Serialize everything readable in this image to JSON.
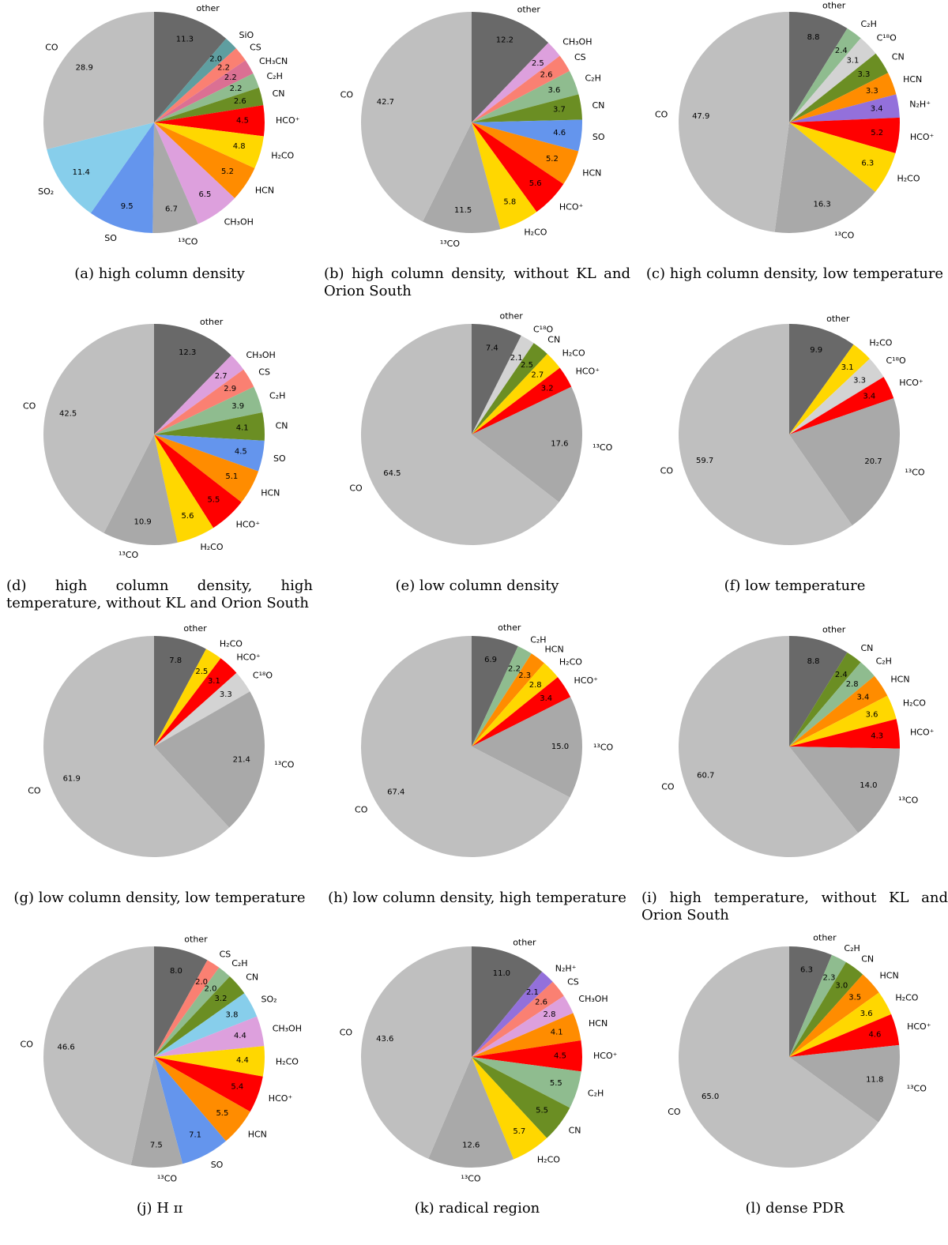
{
  "colors": {
    "other": "#696969",
    "CO": "#bfbfbf",
    "13CO": "#a9a9a9",
    "C18O": "#d3d3d3",
    "SiO": "#5f9ea0",
    "CS": "#fa8072",
    "CH3CN": "#db7093",
    "C2H": "#8fbc8f",
    "CN": "#6b8e23",
    "HCO+": "#ff0000",
    "H2CO": "#ffd700",
    "HCN": "#ff8c00",
    "CH3OH": "#dda0dd",
    "SO": "#6495ed",
    "SO2": "#87ceeb",
    "N2H+": "#9370db"
  },
  "chart_data": [
    {
      "id": "a",
      "type": "pie",
      "title": "(a) high column density",
      "slices": [
        {
          "name": "other",
          "label": "other",
          "value": 11.3
        },
        {
          "name": "SiO",
          "label": "SiO",
          "value": 2.0
        },
        {
          "name": "CS",
          "label": "CS",
          "value": 2.2
        },
        {
          "name": "CH3CN",
          "label": "CH₃CN",
          "value": 2.2
        },
        {
          "name": "C2H",
          "label": "C₂H",
          "value": 2.2
        },
        {
          "name": "CN",
          "label": "CN",
          "value": 2.6
        },
        {
          "name": "HCO+",
          "label": "HCO⁺",
          "value": 4.5
        },
        {
          "name": "H2CO",
          "label": "H₂CO",
          "value": 4.8
        },
        {
          "name": "HCN",
          "label": "HCN",
          "value": 5.2
        },
        {
          "name": "CH3OH",
          "label": "CH₃OH",
          "value": 6.5
        },
        {
          "name": "13CO",
          "label": "¹³CO",
          "value": 6.7
        },
        {
          "name": "SO",
          "label": "SO",
          "value": 9.5
        },
        {
          "name": "SO2",
          "label": "SO₂",
          "value": 11.4
        },
        {
          "name": "CO",
          "label": "CO",
          "value": 28.9
        }
      ]
    },
    {
      "id": "b",
      "type": "pie",
      "title": "(b) high column density, without KL and Orion South",
      "slices": [
        {
          "name": "other",
          "label": "other",
          "value": 12.2
        },
        {
          "name": "CH3OH",
          "label": "CH₃OH",
          "value": 2.5
        },
        {
          "name": "CS",
          "label": "CS",
          "value": 2.6
        },
        {
          "name": "C2H",
          "label": "C₂H",
          "value": 3.6
        },
        {
          "name": "CN",
          "label": "CN",
          "value": 3.7
        },
        {
          "name": "SO",
          "label": "SO",
          "value": 4.6
        },
        {
          "name": "HCN",
          "label": "HCN",
          "value": 5.2
        },
        {
          "name": "HCO+",
          "label": "HCO⁺",
          "value": 5.6
        },
        {
          "name": "H2CO",
          "label": "H₂CO",
          "value": 5.8
        },
        {
          "name": "13CO",
          "label": "¹³CO",
          "value": 11.5
        },
        {
          "name": "CO",
          "label": "CO",
          "value": 42.7
        }
      ]
    },
    {
      "id": "c",
      "type": "pie",
      "title": "(c) high column density, low temperature",
      "slices": [
        {
          "name": "other",
          "label": "other",
          "value": 8.8
        },
        {
          "name": "C2H",
          "label": "C₂H",
          "value": 2.4
        },
        {
          "name": "C18O",
          "label": "C¹⁸O",
          "value": 3.1
        },
        {
          "name": "CN",
          "label": "CN",
          "value": 3.3
        },
        {
          "name": "HCN",
          "label": "HCN",
          "value": 3.3
        },
        {
          "name": "N2H+",
          "label": "N₂H⁺",
          "value": 3.4
        },
        {
          "name": "HCO+",
          "label": "HCO⁺",
          "value": 5.2
        },
        {
          "name": "H2CO",
          "label": "H₂CO",
          "value": 6.3
        },
        {
          "name": "13CO",
          "label": "¹³CO",
          "value": 16.3
        },
        {
          "name": "CO",
          "label": "CO",
          "value": 47.9
        }
      ]
    },
    {
      "id": "d",
      "type": "pie",
      "title": "(d) high column density, high temperature, without KL and Orion South",
      "slices": [
        {
          "name": "other",
          "label": "other",
          "value": 12.3
        },
        {
          "name": "CH3OH",
          "label": "CH₃OH",
          "value": 2.7
        },
        {
          "name": "CS",
          "label": "CS",
          "value": 2.9
        },
        {
          "name": "C2H",
          "label": "C₂H",
          "value": 3.9
        },
        {
          "name": "CN",
          "label": "CN",
          "value": 4.1
        },
        {
          "name": "SO",
          "label": "SO",
          "value": 4.5
        },
        {
          "name": "HCN",
          "label": "HCN",
          "value": 5.1
        },
        {
          "name": "HCO+",
          "label": "HCO⁺",
          "value": 5.5
        },
        {
          "name": "H2CO",
          "label": "H₂CO",
          "value": 5.6
        },
        {
          "name": "13CO",
          "label": "¹³CO",
          "value": 10.9
        },
        {
          "name": "CO",
          "label": "CO",
          "value": 42.5
        }
      ]
    },
    {
      "id": "e",
      "type": "pie",
      "title": "(e) low column density",
      "slices": [
        {
          "name": "other",
          "label": "other",
          "value": 7.4
        },
        {
          "name": "C18O",
          "label": "C¹⁸O",
          "value": 2.1
        },
        {
          "name": "CN",
          "label": "CN",
          "value": 2.5
        },
        {
          "name": "H2CO",
          "label": "H₂CO",
          "value": 2.7
        },
        {
          "name": "HCO+",
          "label": "HCO⁺",
          "value": 3.2
        },
        {
          "name": "13CO",
          "label": "¹³CO",
          "value": 17.6
        },
        {
          "name": "CO",
          "label": "CO",
          "value": 64.5
        }
      ]
    },
    {
      "id": "f",
      "type": "pie",
      "title": "(f) low temperature",
      "slices": [
        {
          "name": "other",
          "label": "other",
          "value": 9.9
        },
        {
          "name": "H2CO",
          "label": "H₂CO",
          "value": 3.1
        },
        {
          "name": "C18O",
          "label": "C¹⁸O",
          "value": 3.3
        },
        {
          "name": "HCO+",
          "label": "HCO⁺",
          "value": 3.4
        },
        {
          "name": "13CO",
          "label": "¹³CO",
          "value": 20.7
        },
        {
          "name": "CO",
          "label": "CO",
          "value": 59.7
        }
      ]
    },
    {
      "id": "g",
      "type": "pie",
      "title": "(g) low column density, low temperature",
      "slices": [
        {
          "name": "other",
          "label": "other",
          "value": 7.8
        },
        {
          "name": "H2CO",
          "label": "H₂CO",
          "value": 2.5
        },
        {
          "name": "HCO+",
          "label": "HCO⁺",
          "value": 3.1
        },
        {
          "name": "C18O",
          "label": "C¹⁸O",
          "value": 3.3
        },
        {
          "name": "13CO",
          "label": "¹³CO",
          "value": 21.4
        },
        {
          "name": "CO",
          "label": "CO",
          "value": 61.9
        }
      ]
    },
    {
      "id": "h",
      "type": "pie",
      "title": "(h) low column density, high temperature",
      "slices": [
        {
          "name": "other",
          "label": "other",
          "value": 6.9
        },
        {
          "name": "C2H",
          "label": "C₂H",
          "value": 2.2
        },
        {
          "name": "HCN",
          "label": "HCN",
          "value": 2.3
        },
        {
          "name": "H2CO",
          "label": "H₂CO",
          "value": 2.8
        },
        {
          "name": "HCO+",
          "label": "HCO⁺",
          "value": 3.4
        },
        {
          "name": "13CO",
          "label": "¹³CO",
          "value": 15.0
        },
        {
          "name": "CO",
          "label": "CO",
          "value": 67.4
        }
      ]
    },
    {
      "id": "i",
      "type": "pie",
      "title": "(i) high temperature, without KL and Orion South",
      "slices": [
        {
          "name": "other",
          "label": "other",
          "value": 8.8
        },
        {
          "name": "CN",
          "label": "CN",
          "value": 2.4
        },
        {
          "name": "C2H",
          "label": "C₂H",
          "value": 2.8
        },
        {
          "name": "HCN",
          "label": "HCN",
          "value": 3.4
        },
        {
          "name": "H2CO",
          "label": "H₂CO",
          "value": 3.6
        },
        {
          "name": "HCO+",
          "label": "HCO⁺",
          "value": 4.3
        },
        {
          "name": "13CO",
          "label": "¹³CO",
          "value": 14.0
        },
        {
          "name": "CO",
          "label": "CO",
          "value": 60.7
        }
      ]
    },
    {
      "id": "j",
      "type": "pie",
      "title": "(j) H ɪɪ",
      "slices": [
        {
          "name": "other",
          "label": "other",
          "value": 8.0
        },
        {
          "name": "CS",
          "label": "CS",
          "value": 2.0
        },
        {
          "name": "C2H",
          "label": "C₂H",
          "value": 2.0
        },
        {
          "name": "CN",
          "label": "CN",
          "value": 3.2
        },
        {
          "name": "SO2",
          "label": "SO₂",
          "value": 3.8
        },
        {
          "name": "CH3OH",
          "label": "CH₃OH",
          "value": 4.4
        },
        {
          "name": "H2CO",
          "label": "H₂CO",
          "value": 4.4
        },
        {
          "name": "HCO+",
          "label": "HCO⁺",
          "value": 5.4
        },
        {
          "name": "HCN",
          "label": "HCN",
          "value": 5.5
        },
        {
          "name": "SO",
          "label": "SO",
          "value": 7.1
        },
        {
          "name": "13CO",
          "label": "¹³CO",
          "value": 7.5
        },
        {
          "name": "CO",
          "label": "CO",
          "value": 46.6
        }
      ]
    },
    {
      "id": "k",
      "type": "pie",
      "title": "(k) radical region",
      "slices": [
        {
          "name": "other",
          "label": "other",
          "value": 11.0
        },
        {
          "name": "N2H+",
          "label": "N₂H⁺",
          "value": 2.1
        },
        {
          "name": "CS",
          "label": "CS",
          "value": 2.6
        },
        {
          "name": "CH3OH",
          "label": "CH₃OH",
          "value": 2.8
        },
        {
          "name": "HCN",
          "label": "HCN",
          "value": 4.1
        },
        {
          "name": "HCO+",
          "label": "HCO⁺",
          "value": 4.5
        },
        {
          "name": "C2H",
          "label": "C₂H",
          "value": 5.5
        },
        {
          "name": "CN",
          "label": "CN",
          "value": 5.5
        },
        {
          "name": "H2CO",
          "label": "H₂CO",
          "value": 5.7
        },
        {
          "name": "13CO",
          "label": "¹³CO",
          "value": 12.6
        },
        {
          "name": "CO",
          "label": "CO",
          "value": 43.6
        }
      ]
    },
    {
      "id": "l",
      "type": "pie",
      "title": "(l) dense PDR",
      "slices": [
        {
          "name": "other",
          "label": "other",
          "value": 6.3
        },
        {
          "name": "C2H",
          "label": "C₂H",
          "value": 2.3
        },
        {
          "name": "CN",
          "label": "CN",
          "value": 3.0
        },
        {
          "name": "HCN",
          "label": "HCN",
          "value": 3.5
        },
        {
          "name": "H2CO",
          "label": "H₂CO",
          "value": 3.6
        },
        {
          "name": "HCO+",
          "label": "HCO⁺",
          "value": 4.6
        },
        {
          "name": "13CO",
          "label": "¹³CO",
          "value": 11.8
        },
        {
          "name": "CO",
          "label": "CO",
          "value": 65.0
        }
      ]
    }
  ]
}
